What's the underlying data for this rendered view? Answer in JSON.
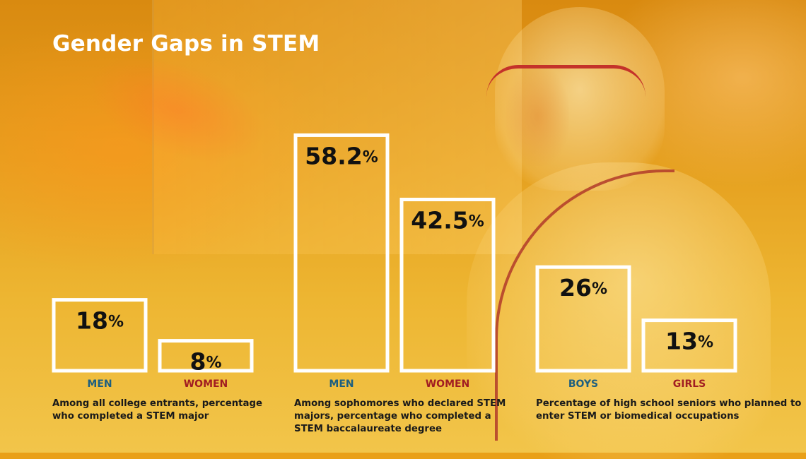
{
  "title": "Gender Gaps in STEM",
  "colors": {
    "male": "#1d5f80",
    "female": "#a11d22",
    "bar_outline": "#ffffff",
    "value_text": "#111111"
  },
  "chart_data": [
    {
      "type": "bar",
      "categories": [
        "MEN",
        "WOMEN"
      ],
      "values": [
        18,
        8
      ],
      "unit": "%",
      "description": "Among all college entrants, percentage who completed a STEM major"
    },
    {
      "type": "bar",
      "categories": [
        "MEN",
        "WOMEN"
      ],
      "values": [
        58.2,
        42.5
      ],
      "unit": "%",
      "description": "Among sophomores who declared STEM majors, percentage who completed a STEM baccalaureate degree"
    },
    {
      "type": "bar",
      "categories": [
        "BOYS",
        "GIRLS"
      ],
      "values": [
        26,
        13
      ],
      "unit": "%",
      "description": "Percentage of high school seniors who planned to enter STEM or biomedical occupations"
    }
  ]
}
